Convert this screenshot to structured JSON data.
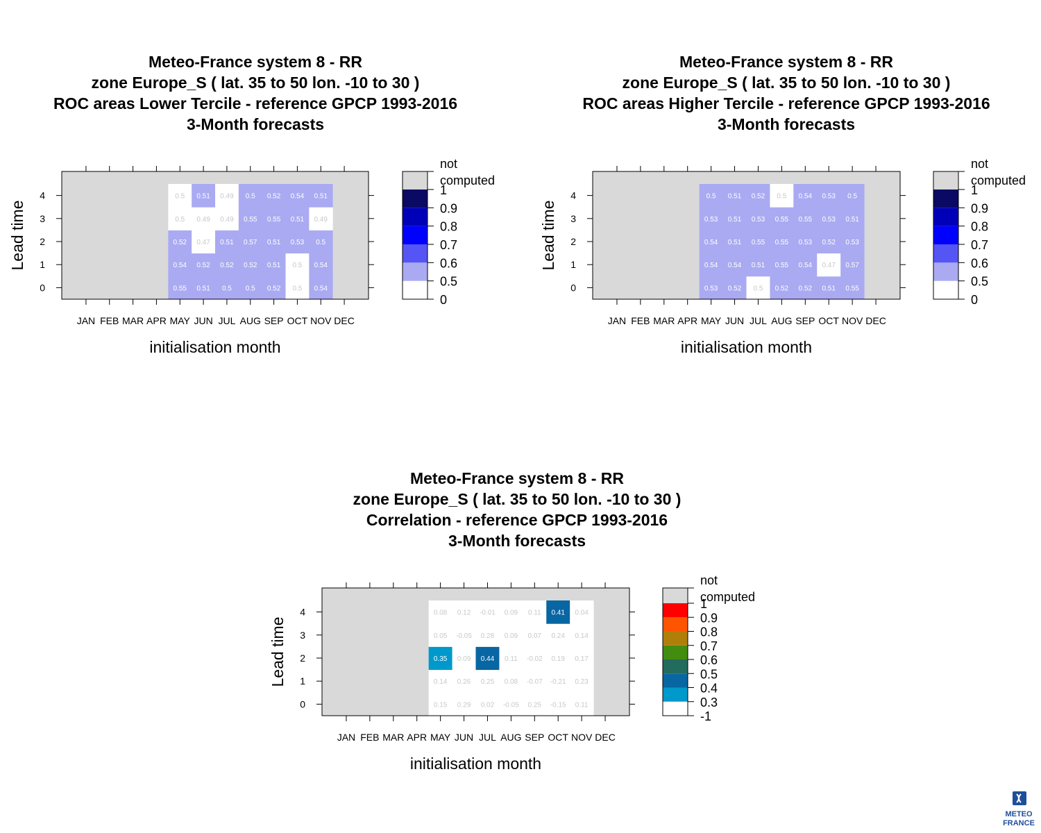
{
  "chart_data": [
    {
      "type": "heatmap",
      "title": [
        "Meteo-France system 8  -  RR",
        "zone Europe_S ( lat. 35 to 50    lon. -10 to 30 )",
        "ROC areas Lower Tercile  -  reference GPCP 1993-2016",
        "3-Month forecasts"
      ],
      "xlabel": "initialisation month",
      "ylabel": "Lead time",
      "categories": [
        "JAN",
        "FEB",
        "MAR",
        "APR",
        "MAY",
        "JUN",
        "JUL",
        "AUG",
        "SEP",
        "OCT",
        "NOV",
        "DEC"
      ],
      "lead_times": [
        "0",
        "1",
        "2",
        "3",
        "4"
      ],
      "values": [
        [
          null,
          null,
          null,
          null,
          0.55,
          0.51,
          0.5,
          0.5,
          0.52,
          0.5,
          0.54,
          null
        ],
        [
          null,
          null,
          null,
          null,
          0.54,
          0.52,
          0.52,
          0.52,
          0.51,
          0.5,
          0.54,
          null
        ],
        [
          null,
          null,
          null,
          null,
          0.52,
          0.47,
          0.51,
          0.57,
          0.51,
          0.53,
          0.5,
          null
        ],
        [
          null,
          null,
          null,
          null,
          0.5,
          0.49,
          0.49,
          0.55,
          0.55,
          0.51,
          0.49,
          null
        ],
        [
          null,
          null,
          null,
          null,
          0.5,
          0.51,
          0.49,
          0.5,
          0.52,
          0.54,
          0.51,
          null
        ]
      ],
      "fill_classes": [
        [
          null,
          null,
          null,
          null,
          1,
          1,
          1,
          1,
          1,
          0,
          1,
          null
        ],
        [
          null,
          null,
          null,
          null,
          1,
          1,
          1,
          1,
          1,
          0,
          1,
          null
        ],
        [
          null,
          null,
          null,
          null,
          1,
          0,
          1,
          1,
          1,
          1,
          1,
          null
        ],
        [
          null,
          null,
          null,
          null,
          0,
          0,
          0,
          1,
          1,
          1,
          0,
          null
        ],
        [
          null,
          null,
          null,
          null,
          0,
          1,
          0,
          1,
          1,
          1,
          1,
          null
        ]
      ],
      "legend": {
        "missing_label": [
          "not",
          "computed"
        ],
        "breaks": [
          "0",
          "0.5",
          "0.6",
          "0.7",
          "0.8",
          "0.9",
          "1"
        ],
        "colors": [
          "#ffffff",
          "#aaaaf2",
          "#5555f5",
          "#0000ff",
          "#0000b8",
          "#0a0a64"
        ],
        "missing_color": "#d9d9d9"
      }
    },
    {
      "type": "heatmap",
      "title": [
        "Meteo-France system 8  -  RR",
        "zone Europe_S ( lat. 35 to 50    lon. -10 to 30 )",
        "ROC areas Higher Tercile  -  reference GPCP 1993-2016",
        "3-Month forecasts"
      ],
      "xlabel": "initialisation month",
      "ylabel": "Lead time",
      "categories": [
        "JAN",
        "FEB",
        "MAR",
        "APR",
        "MAY",
        "JUN",
        "JUL",
        "AUG",
        "SEP",
        "OCT",
        "NOV",
        "DEC"
      ],
      "lead_times": [
        "0",
        "1",
        "2",
        "3",
        "4"
      ],
      "values": [
        [
          null,
          null,
          null,
          null,
          0.53,
          0.52,
          0.5,
          0.52,
          0.52,
          0.51,
          0.55,
          null
        ],
        [
          null,
          null,
          null,
          null,
          0.54,
          0.54,
          0.51,
          0.55,
          0.54,
          0.47,
          0.57,
          null
        ],
        [
          null,
          null,
          null,
          null,
          0.54,
          0.51,
          0.55,
          0.55,
          0.53,
          0.52,
          0.53,
          null
        ],
        [
          null,
          null,
          null,
          null,
          0.53,
          0.51,
          0.53,
          0.55,
          0.55,
          0.53,
          0.51,
          null
        ],
        [
          null,
          null,
          null,
          null,
          0.5,
          0.51,
          0.52,
          0.5,
          0.54,
          0.53,
          0.5,
          null
        ]
      ],
      "fill_classes": [
        [
          null,
          null,
          null,
          null,
          1,
          1,
          0,
          1,
          1,
          1,
          1,
          null
        ],
        [
          null,
          null,
          null,
          null,
          1,
          1,
          1,
          1,
          1,
          0,
          1,
          null
        ],
        [
          null,
          null,
          null,
          null,
          1,
          1,
          1,
          1,
          1,
          1,
          1,
          null
        ],
        [
          null,
          null,
          null,
          null,
          1,
          1,
          1,
          1,
          1,
          1,
          1,
          null
        ],
        [
          null,
          null,
          null,
          null,
          1,
          1,
          1,
          0,
          1,
          1,
          1,
          null
        ]
      ],
      "legend": {
        "missing_label": [
          "not",
          "computed"
        ],
        "breaks": [
          "0",
          "0.5",
          "0.6",
          "0.7",
          "0.8",
          "0.9",
          "1"
        ],
        "colors": [
          "#ffffff",
          "#aaaaf2",
          "#5555f5",
          "#0000ff",
          "#0000b8",
          "#0a0a64"
        ],
        "missing_color": "#d9d9d9"
      }
    },
    {
      "type": "heatmap",
      "title": [
        "Meteo-France system 8  -  RR",
        "zone Europe_S ( lat. 35 to 50    lon. -10 to 30 )",
        "Correlation -  reference GPCP 1993-2016",
        "3-Month forecasts"
      ],
      "xlabel": "initialisation month",
      "ylabel": "Lead time",
      "categories": [
        "JAN",
        "FEB",
        "MAR",
        "APR",
        "MAY",
        "JUN",
        "JUL",
        "AUG",
        "SEP",
        "OCT",
        "NOV",
        "DEC"
      ],
      "lead_times": [
        "0",
        "1",
        "2",
        "3",
        "4"
      ],
      "values": [
        [
          null,
          null,
          null,
          null,
          0.15,
          0.29,
          0.02,
          -0.05,
          0.25,
          -0.15,
          0.11,
          null
        ],
        [
          null,
          null,
          null,
          null,
          0.14,
          0.26,
          0.25,
          0.08,
          -0.07,
          -0.21,
          0.23,
          null
        ],
        [
          null,
          null,
          null,
          null,
          0.35,
          0.09,
          0.44,
          0.11,
          -0.02,
          0.19,
          0.17,
          null
        ],
        [
          null,
          null,
          null,
          null,
          0.05,
          -0.05,
          0.28,
          0.09,
          0.07,
          0.24,
          0.14,
          null
        ],
        [
          null,
          null,
          null,
          null,
          0.08,
          0.12,
          -0.01,
          0.09,
          0.11,
          0.41,
          0.04,
          null
        ]
      ],
      "fill_classes": [
        [
          null,
          null,
          null,
          null,
          0,
          0,
          0,
          0,
          0,
          0,
          0,
          null
        ],
        [
          null,
          null,
          null,
          null,
          0,
          0,
          0,
          0,
          0,
          0,
          0,
          null
        ],
        [
          null,
          null,
          null,
          null,
          1,
          0,
          2,
          0,
          0,
          0,
          0,
          null
        ],
        [
          null,
          null,
          null,
          null,
          0,
          0,
          0,
          0,
          0,
          0,
          0,
          null
        ],
        [
          null,
          null,
          null,
          null,
          0,
          0,
          0,
          0,
          0,
          2,
          0,
          null
        ]
      ],
      "legend": {
        "missing_label": [
          "not",
          "computed"
        ],
        "breaks": [
          "-1",
          "0.3",
          "0.4",
          "0.5",
          "0.6",
          "0.7",
          "0.8",
          "0.9",
          "1"
        ],
        "colors": [
          "#ffffff",
          "#0099cc",
          "#0866a3",
          "#236b5c",
          "#428c0f",
          "#b07f0a",
          "#ff5500",
          "#ff0000"
        ],
        "missing_color": "#d9d9d9"
      }
    }
  ],
  "logo": {
    "line1": "METEO",
    "line2": "FRANCE",
    "color": "#1f4e9a"
  }
}
